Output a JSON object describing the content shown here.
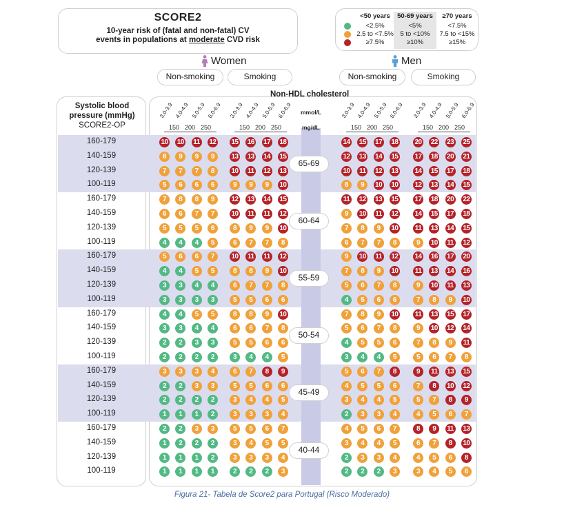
{
  "title": {
    "main": "SCORE2",
    "line2": "10-year risk of (fatal and non-fatal) CV",
    "line3_pre": "events in populations at ",
    "line3_em": "moderate",
    "line3_post": " CVD risk"
  },
  "legend": {
    "headers": [
      "<50 years",
      "50-69 years",
      "≥70 years"
    ],
    "rows": [
      {
        "color": "#52b985",
        "cells": [
          "<2.5%",
          "<5%",
          "<7.5%"
        ]
      },
      {
        "color": "#f0a13a",
        "cells": [
          "2.5 to <7.5%",
          "5 to <10%",
          "7.5 to <15%"
        ]
      },
      {
        "color": "#b52228",
        "cells": [
          "≥7.5%",
          "≥10%",
          "≥15%"
        ]
      }
    ]
  },
  "sexes": {
    "women": "Women",
    "men": "Men"
  },
  "smoking_labels": [
    "Non-smoking",
    "Smoking",
    "Non-smoking",
    "Smoking"
  ],
  "nonhdl_title": "Non-HDL cholesterol",
  "left_header": [
    "Systolic blood",
    "pressure (mmHg)",
    "SCORE2-OP"
  ],
  "chol_mmol": [
    "3.0-3.9",
    "4.0-4.9",
    "5.0-5.9",
    "6.0-6.9"
  ],
  "chol_mgdl": [
    "150",
    "200",
    "250"
  ],
  "units": {
    "mmol": "mmol/L",
    "mgdl": "mg/dL"
  },
  "caption": "Figura 21- Tabela de Score2 para Portugal (Risco Moderado)",
  "colors": {
    "green": "#52b985",
    "orange": "#f0a13a",
    "red": "#b52228",
    "band": "#dcdcef",
    "column": "#c9cae6"
  },
  "chart_data": {
    "type": "table",
    "title": "SCORE2",
    "groups": [
      "Women Non-smoking",
      "Women Smoking",
      "Men Non-smoking",
      "Men Smoking"
    ],
    "columns": [
      "3.0-3.9",
      "4.0-4.9",
      "5.0-5.9",
      "6.0-6.9"
    ],
    "sbp_rows": [
      "160-179",
      "140-159",
      "120-139",
      "100-119"
    ],
    "age_bands": [
      {
        "age": "65-69",
        "band": "high",
        "values": [
          [
            [
              10,
              10,
              11,
              12
            ],
            [
              15,
              16,
              17,
              18
            ],
            [
              14,
              15,
              17,
              18
            ],
            [
              20,
              22,
              23,
              25
            ]
          ],
          [
            [
              8,
              9,
              9,
              9
            ],
            [
              13,
              13,
              14,
              15
            ],
            [
              12,
              13,
              14,
              15
            ],
            [
              17,
              18,
              20,
              21
            ]
          ],
          [
            [
              7,
              7,
              7,
              8
            ],
            [
              10,
              11,
              12,
              13
            ],
            [
              10,
              11,
              12,
              13
            ],
            [
              14,
              15,
              17,
              18
            ]
          ],
          [
            [
              5,
              6,
              6,
              6
            ],
            [
              9,
              9,
              9,
              10
            ],
            [
              8,
              9,
              10,
              10
            ],
            [
              12,
              13,
              14,
              15
            ]
          ]
        ]
      },
      {
        "age": "60-64",
        "band": "low",
        "values": [
          [
            [
              7,
              8,
              8,
              9
            ],
            [
              12,
              13,
              14,
              15
            ],
            [
              11,
              12,
              13,
              15
            ],
            [
              17,
              18,
              20,
              22
            ]
          ],
          [
            [
              6,
              6,
              7,
              7
            ],
            [
              10,
              11,
              11,
              12
            ],
            [
              9,
              10,
              11,
              12
            ],
            [
              14,
              15,
              17,
              18
            ]
          ],
          [
            [
              5,
              5,
              5,
              6
            ],
            [
              8,
              9,
              9,
              10
            ],
            [
              7,
              8,
              9,
              10
            ],
            [
              11,
              13,
              14,
              15
            ]
          ],
          [
            [
              4,
              4,
              4,
              5
            ],
            [
              6,
              7,
              7,
              8
            ],
            [
              6,
              7,
              7,
              8
            ],
            [
              9,
              10,
              11,
              12
            ]
          ]
        ]
      },
      {
        "age": "55-59",
        "band": "high",
        "values": [
          [
            [
              5,
              6,
              6,
              7
            ],
            [
              10,
              11,
              11,
              12
            ],
            [
              9,
              10,
              11,
              12
            ],
            [
              14,
              16,
              17,
              20
            ]
          ],
          [
            [
              4,
              4,
              5,
              5
            ],
            [
              8,
              8,
              9,
              10
            ],
            [
              7,
              8,
              9,
              10
            ],
            [
              11,
              13,
              14,
              16
            ]
          ],
          [
            [
              3,
              3,
              4,
              4
            ],
            [
              6,
              7,
              7,
              8
            ],
            [
              5,
              6,
              7,
              8
            ],
            [
              9,
              10,
              11,
              13
            ]
          ],
          [
            [
              3,
              3,
              3,
              3
            ],
            [
              5,
              5,
              6,
              6
            ],
            [
              4,
              5,
              6,
              6
            ],
            [
              7,
              8,
              9,
              10
            ]
          ]
        ]
      },
      {
        "age": "50-54",
        "band": "low",
        "values": [
          [
            [
              4,
              4,
              5,
              5
            ],
            [
              8,
              8,
              9,
              10
            ],
            [
              7,
              8,
              9,
              10
            ],
            [
              11,
              13,
              15,
              17
            ]
          ],
          [
            [
              3,
              3,
              4,
              4
            ],
            [
              6,
              6,
              7,
              8
            ],
            [
              5,
              6,
              7,
              8
            ],
            [
              9,
              10,
              12,
              14
            ]
          ],
          [
            [
              2,
              2,
              3,
              3
            ],
            [
              5,
              5,
              6,
              6
            ],
            [
              4,
              5,
              5,
              6
            ],
            [
              7,
              8,
              9,
              11
            ]
          ],
          [
            [
              2,
              2,
              2,
              2
            ],
            [
              3,
              4,
              4,
              5
            ],
            [
              3,
              4,
              4,
              5
            ],
            [
              5,
              6,
              7,
              8
            ]
          ]
        ]
      },
      {
        "age": "45-49",
        "band": "high",
        "values": [
          [
            [
              3,
              3,
              3,
              4
            ],
            [
              6,
              7,
              8,
              9
            ],
            [
              5,
              6,
              7,
              8
            ],
            [
              9,
              11,
              13,
              15
            ]
          ],
          [
            [
              2,
              2,
              3,
              3
            ],
            [
              5,
              5,
              6,
              6
            ],
            [
              4,
              5,
              5,
              6
            ],
            [
              7,
              8,
              10,
              12
            ]
          ],
          [
            [
              2,
              2,
              2,
              2
            ],
            [
              3,
              4,
              4,
              5
            ],
            [
              3,
              4,
              4,
              5
            ],
            [
              5,
              7,
              8,
              9
            ]
          ],
          [
            [
              1,
              1,
              1,
              2
            ],
            [
              3,
              3,
              3,
              4
            ],
            [
              2,
              3,
              3,
              4
            ],
            [
              4,
              5,
              6,
              7
            ]
          ]
        ]
      },
      {
        "age": "40-44",
        "band": "low",
        "values": [
          [
            [
              2,
              2,
              3,
              3
            ],
            [
              5,
              5,
              6,
              7
            ],
            [
              4,
              5,
              6,
              7
            ],
            [
              8,
              9,
              11,
              13
            ]
          ],
          [
            [
              1,
              2,
              2,
              2
            ],
            [
              3,
              4,
              5,
              5
            ],
            [
              3,
              4,
              4,
              5
            ],
            [
              6,
              7,
              8,
              10
            ]
          ],
          [
            [
              1,
              1,
              1,
              2
            ],
            [
              3,
              3,
              3,
              4
            ],
            [
              2,
              3,
              3,
              4
            ],
            [
              4,
              5,
              6,
              8
            ]
          ],
          [
            [
              1,
              1,
              1,
              1
            ],
            [
              2,
              2,
              2,
              3
            ],
            [
              2,
              2,
              2,
              3
            ],
            [
              3,
              4,
              5,
              6
            ]
          ]
        ]
      }
    ]
  }
}
